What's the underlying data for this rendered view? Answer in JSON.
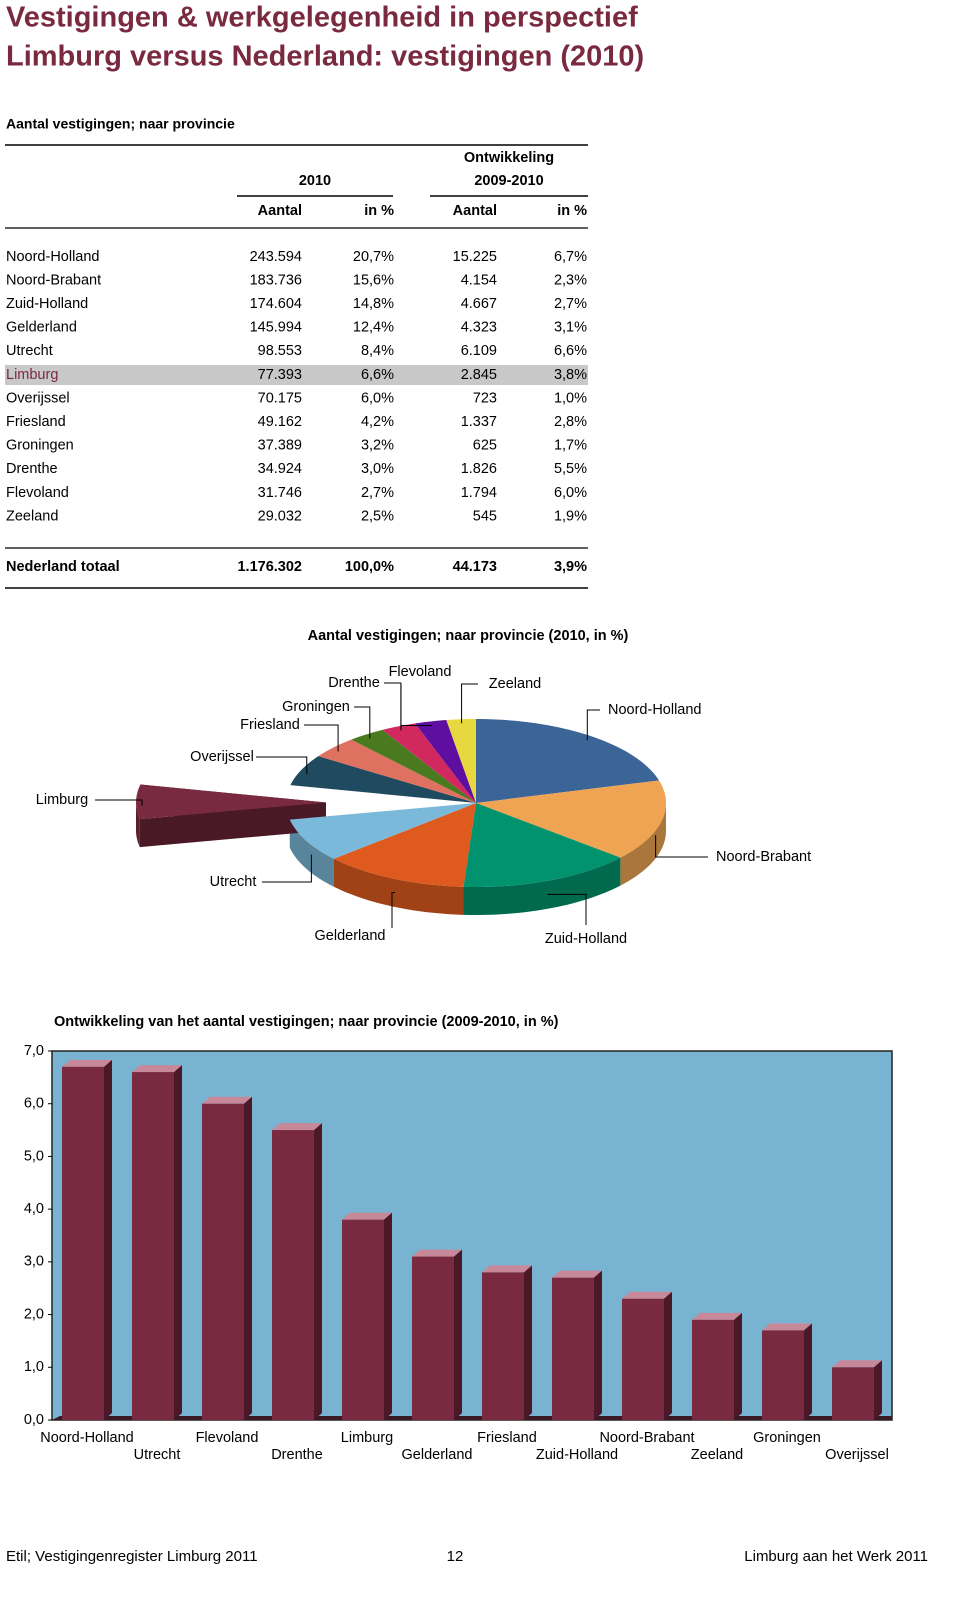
{
  "header": {
    "title_line1": "Vestigingen & werkgelegenheid in perspectief",
    "title_line2": "Limburg versus Nederland: vestigingen (2010)"
  },
  "table": {
    "caption": "Aantal vestigingen; naar provincie",
    "group_2010": "2010",
    "group_dev_line1": "Ontwikkeling",
    "group_dev_line2": "2009-2010",
    "columns": [
      "Aantal",
      "in %",
      "Aantal",
      "in %"
    ],
    "rows": [
      [
        "Noord-Holland",
        "243.594",
        "20,7%",
        "15.225",
        "6,7%"
      ],
      [
        "Noord-Brabant",
        "183.736",
        "15,6%",
        "4.154",
        "2,3%"
      ],
      [
        "Zuid-Holland",
        "174.604",
        "14,8%",
        "4.667",
        "2,7%"
      ],
      [
        "Gelderland",
        "145.994",
        "12,4%",
        "4.323",
        "3,1%"
      ],
      [
        "Utrecht",
        "98.553",
        "8,4%",
        "6.109",
        "6,6%"
      ],
      [
        "Limburg",
        "77.393",
        "6,6%",
        "2.845",
        "3,8%"
      ],
      [
        "Overijssel",
        "70.175",
        "6,0%",
        "723",
        "1,0%"
      ],
      [
        "Friesland",
        "49.162",
        "4,2%",
        "1.337",
        "2,8%"
      ],
      [
        "Groningen",
        "37.389",
        "3,2%",
        "625",
        "1,7%"
      ],
      [
        "Drenthe",
        "34.924",
        "3,0%",
        "1.826",
        "5,5%"
      ],
      [
        "Flevoland",
        "31.746",
        "2,7%",
        "1.794",
        "6,0%"
      ],
      [
        "Zeeland",
        "29.032",
        "2,5%",
        "545",
        "1,9%"
      ]
    ],
    "highlight_row": 5,
    "total": [
      "Nederland totaal",
      "1.176.302",
      "100,0%",
      "44.173",
      "3,9%"
    ]
  },
  "chart_data": [
    {
      "type": "pie",
      "title": "Aantal vestigingen; naar provincie (2010, in %)",
      "categories": [
        "Noord-Holland",
        "Noord-Brabant",
        "Zuid-Holland",
        "Gelderland",
        "Utrecht",
        "Limburg",
        "Overijssel",
        "Friesland",
        "Groningen",
        "Drenthe",
        "Flevoland",
        "Zeeland"
      ],
      "values": [
        20.7,
        15.6,
        14.8,
        12.4,
        8.4,
        6.6,
        6.0,
        4.2,
        3.2,
        3.0,
        2.7,
        2.5
      ],
      "colors": [
        "#3b6597",
        "#eea452",
        "#00936e",
        "#de5a1e",
        "#7ab9d9",
        "#7a2a40",
        "#1f4a5f",
        "#df7161",
        "#4a7a1f",
        "#d0285f",
        "#5f0f9f",
        "#e6d83e"
      ],
      "exploded": "Limburg"
    },
    {
      "type": "bar",
      "title": "Ontwikkeling van het aantal vestigingen; naar provincie (2009-2010, in %)",
      "categories": [
        "Noord-Holland",
        "Utrecht",
        "Flevoland",
        "Drenthe",
        "Limburg",
        "Gelderland",
        "Friesland",
        "Zuid-Holland",
        "Noord-Brabant",
        "Zeeland",
        "Groningen",
        "Overijssel"
      ],
      "values": [
        6.7,
        6.6,
        6.0,
        5.5,
        3.8,
        3.1,
        2.8,
        2.7,
        2.3,
        1.9,
        1.7,
        1.0
      ],
      "color": "#7a2a40",
      "background": "#78b4d2",
      "ylim": [
        0,
        7
      ],
      "yticks": [
        {
          "value": 0,
          "label": "0,0"
        },
        {
          "value": 1,
          "label": "1,0"
        },
        {
          "value": 2,
          "label": "2,0"
        },
        {
          "value": 3,
          "label": "3,0"
        },
        {
          "value": 4,
          "label": "4,0"
        },
        {
          "value": 5,
          "label": "5,0"
        },
        {
          "value": 6,
          "label": "6,0"
        },
        {
          "value": 7,
          "label": "7,0"
        }
      ]
    }
  ],
  "footer": {
    "left": "Etil; Vestigingenregister Limburg 2011",
    "page": "12",
    "right": "Limburg aan het Werk 2011"
  }
}
